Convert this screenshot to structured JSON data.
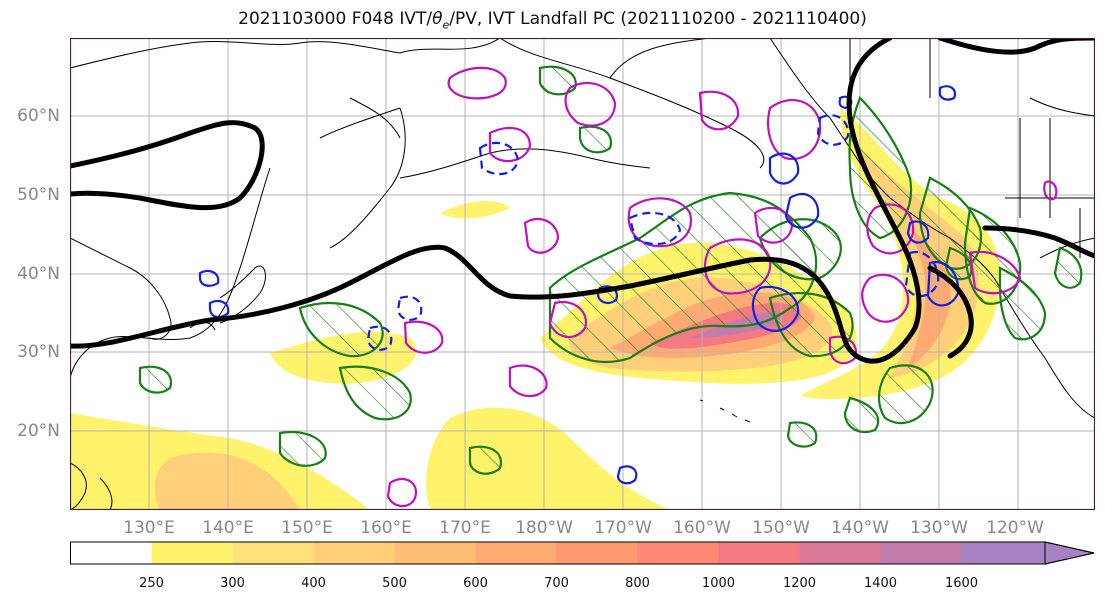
{
  "title": {
    "prefix": "2021103000 F048 IVT/",
    "theta": "θ",
    "sub": "e",
    "suffix": "/PV, IVT Landfall PC (2021110200 - 2021110400)"
  },
  "lat_labels": [
    "60°N",
    "50°N",
    "40°N",
    "30°N",
    "20°N"
  ],
  "lon_labels": [
    "130°E",
    "140°E",
    "150°E",
    "160°E",
    "170°E",
    "180°W",
    "170°W",
    "160°W",
    "150°W",
    "140°W",
    "130°W",
    "120°W"
  ],
  "colorbar": {
    "ticks": [
      "250",
      "300",
      "400",
      "500",
      "600",
      "700",
      "800",
      "1000",
      "1200",
      "1400",
      "1600"
    ],
    "colors": [
      "#ffffff",
      "#fff36c",
      "#ffe17a",
      "#ffcf7a",
      "#ffbe74",
      "#ffaa72",
      "#ff9a6e",
      "#ff8774",
      "#f27a80",
      "#da7a96",
      "#c27cae",
      "#a982c4"
    ]
  },
  "contour_colors": {
    "ivt_low": "#fff36c",
    "ivt_mid": "#ffbe74",
    "ivt_high": "#f27a80",
    "ivt_peak": "#a982c4",
    "theta_e": "#000000",
    "pv_green": "#158015",
    "pv_blue": "#1020e0",
    "pv_magenta": "#c010c0"
  }
}
